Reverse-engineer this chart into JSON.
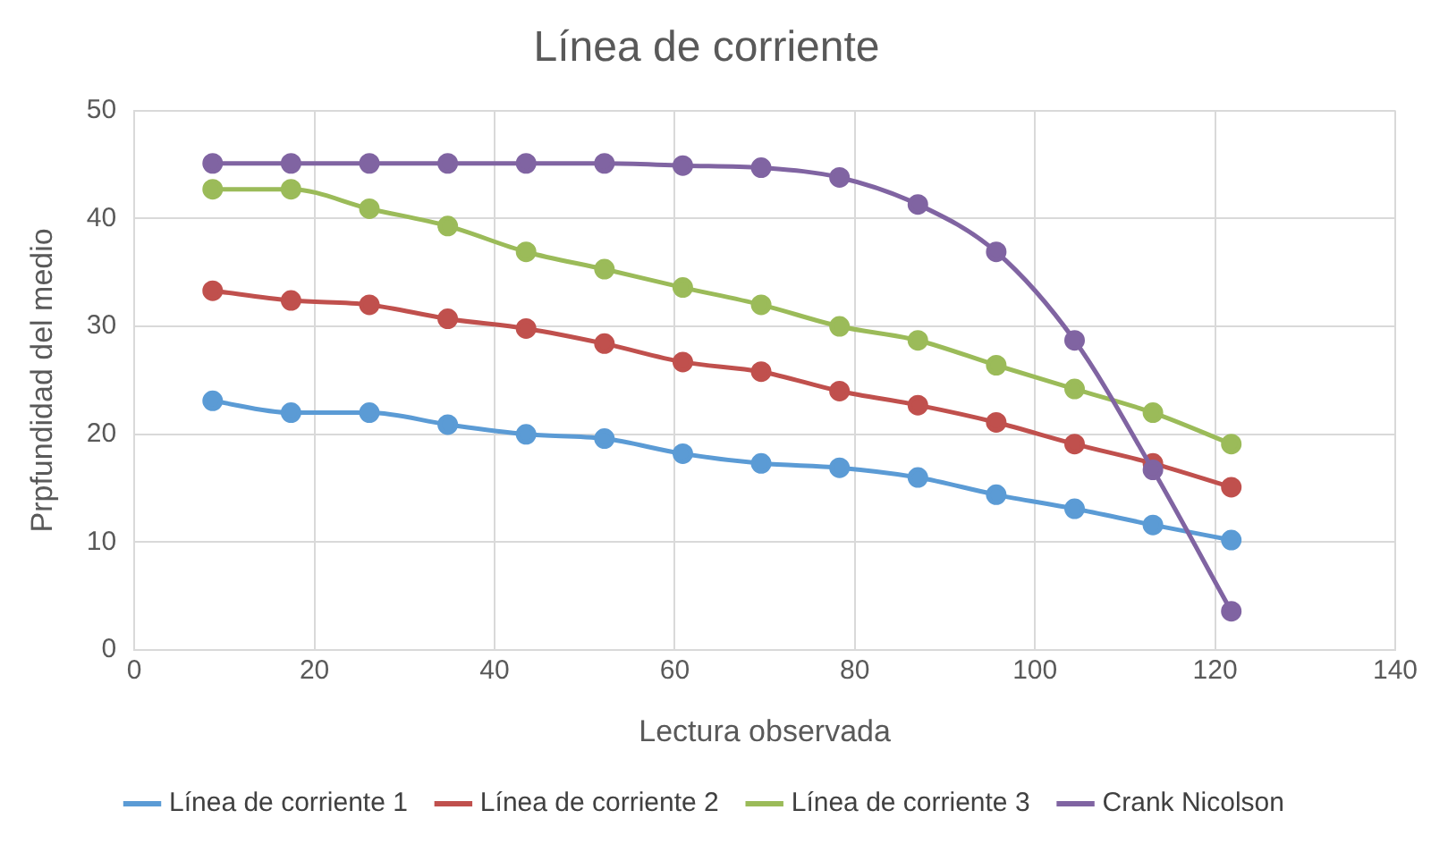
{
  "chart_data": {
    "type": "line",
    "title": "Línea de corriente",
    "xlabel": "Lectura observada",
    "ylabel": "Prpfundidad del medio",
    "x": [
      8.7,
      17.4,
      26.1,
      34.8,
      43.5,
      52.2,
      60.9,
      69.6,
      78.3,
      87,
      95.7,
      104.4,
      113.1,
      121.8
    ],
    "series": [
      {
        "name": "Línea de corriente 1",
        "color": "#5b9bd5",
        "values": [
          23.1,
          22,
          22,
          20.9,
          20,
          19.6,
          18.2,
          17.3,
          16.9,
          16,
          14.4,
          13.1,
          11.6,
          10.2
        ]
      },
      {
        "name": "Línea de corriente 2",
        "color": "#c0504d",
        "values": [
          33.3,
          32.4,
          32,
          30.7,
          29.8,
          28.4,
          26.7,
          25.8,
          24,
          22.7,
          21.1,
          19.1,
          17.3,
          15.1
        ]
      },
      {
        "name": "Línea de corriente 3",
        "color": "#9bbb59",
        "values": [
          42.7,
          42.7,
          40.9,
          39.3,
          36.9,
          35.3,
          33.6,
          32,
          30,
          28.7,
          26.4,
          24.2,
          22,
          19.1
        ]
      },
      {
        "name": "Crank Nicolson",
        "color": "#8064a2",
        "values": [
          45.1,
          45.1,
          45.1,
          45.1,
          45.1,
          45.1,
          44.9,
          44.7,
          43.8,
          41.3,
          36.9,
          28.7,
          16.7,
          3.6
        ]
      }
    ],
    "xlim": [
      0,
      140
    ],
    "xticks": [
      0,
      20,
      40,
      60,
      80,
      100,
      120,
      140
    ],
    "ylim": [
      0,
      50
    ],
    "yticks": [
      0,
      10,
      20,
      30,
      40,
      50
    ],
    "grid": true,
    "legend": "bottom",
    "marker": "circle",
    "line_style": "solid"
  }
}
